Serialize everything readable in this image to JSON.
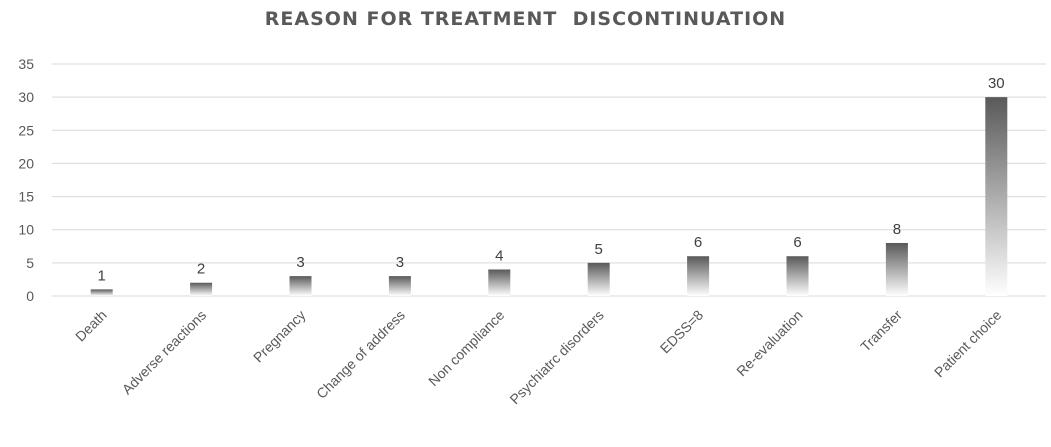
{
  "chart_data": {
    "type": "bar",
    "title": "REASON FOR TREATMENT  DISCONTINUATION",
    "categories": [
      "Death",
      "Adverse reactions",
      "Pregnancy",
      "Change of address",
      "Non compliance",
      "Psychiatrc disorders",
      "EDSS=8",
      "Re-evaluation",
      "Transfer",
      "Patient choice"
    ],
    "values": [
      1,
      2,
      3,
      3,
      4,
      5,
      6,
      6,
      8,
      30
    ],
    "data_labels": [
      "1",
      "2",
      "3",
      "3",
      "4",
      "5",
      "6",
      "6",
      "8",
      "30"
    ],
    "yticks": [
      "0",
      "5",
      "10",
      "15",
      "20",
      "25",
      "30",
      "35"
    ],
    "ylim": [
      0,
      35
    ],
    "xlabel": "",
    "ylabel": "",
    "grid": true,
    "bar_gradient": [
      "#595959",
      "#ffffff"
    ],
    "gridline_color": "#d9d9d9"
  }
}
